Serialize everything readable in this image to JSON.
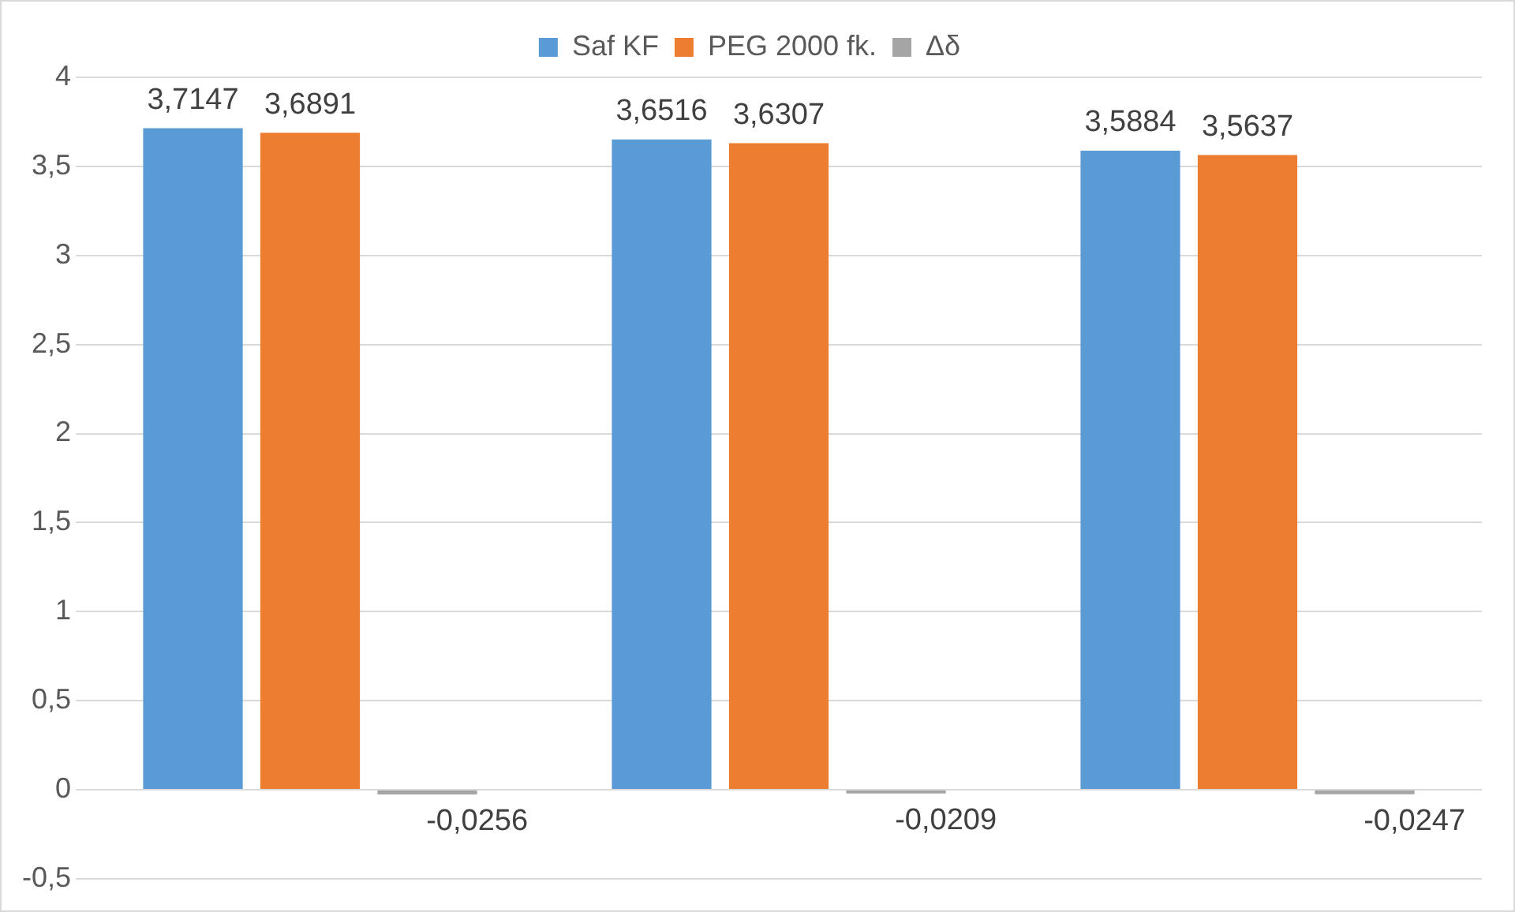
{
  "chart_data": {
    "type": "bar",
    "categories": [
      null,
      null,
      null
    ],
    "series": [
      {
        "name": "Saf KF",
        "color": "#5b9bd5",
        "values": [
          3.7147,
          3.6516,
          3.5884
        ],
        "value_labels": [
          "3,7147",
          "3,6516",
          "3,5884"
        ]
      },
      {
        "name": "PEG 2000 fk.",
        "color": "#ed7d31",
        "values": [
          3.6891,
          3.6307,
          3.5637
        ],
        "value_labels": [
          "3,6891",
          "3,6307",
          "3,5637"
        ]
      },
      {
        "name": "Δδ",
        "color": "#a5a5a5",
        "values": [
          -0.0256,
          -0.0209,
          -0.0247
        ],
        "value_labels": [
          "-0,0256",
          "-0,0209",
          "-0,0247"
        ]
      }
    ],
    "ylim": [
      -0.5,
      4
    ],
    "yticks": [
      {
        "value": -0.5,
        "label": "-0,5"
      },
      {
        "value": 0,
        "label": "0"
      },
      {
        "value": 0.5,
        "label": "0,5"
      },
      {
        "value": 1,
        "label": "1"
      },
      {
        "value": 1.5,
        "label": "1,5"
      },
      {
        "value": 2,
        "label": "2"
      },
      {
        "value": 2.5,
        "label": "2,5"
      },
      {
        "value": 3,
        "label": "3"
      },
      {
        "value": 3.5,
        "label": "3,5"
      },
      {
        "value": 4,
        "label": "4"
      }
    ],
    "grid": "y",
    "legend": "top",
    "tick_labels": "y"
  }
}
